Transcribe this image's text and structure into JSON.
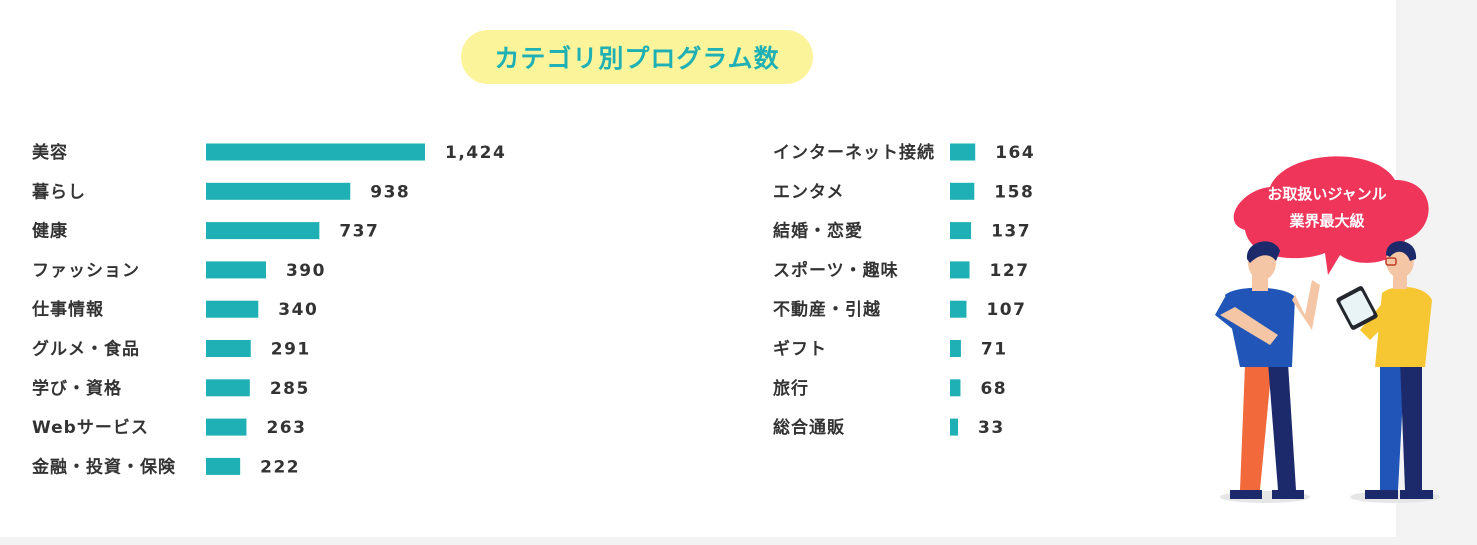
{
  "chart_data": {
    "type": "bar",
    "orientation": "horizontal",
    "title": "カテゴリ別プログラム数",
    "groups": [
      {
        "categories": [
          "美容",
          "暮らし",
          "健康",
          "ファッション",
          "仕事情報",
          "グルメ・食品",
          "学び・資格",
          "Webサービス",
          "金融・投資・保険"
        ],
        "values": [
          1424,
          938,
          737,
          390,
          340,
          291,
          285,
          263,
          222
        ],
        "value_labels": [
          "1,424",
          "938",
          "737",
          "390",
          "340",
          "291",
          "285",
          "263",
          "222"
        ]
      },
      {
        "categories": [
          "インターネット接続",
          "エンタメ",
          "結婚・恋愛",
          "スポーツ・趣味",
          "不動産・引越",
          "ギフト",
          "旅行",
          "総合通販"
        ],
        "values": [
          164,
          158,
          137,
          127,
          107,
          71,
          68,
          33
        ],
        "value_labels": [
          "164",
          "158",
          "137",
          "127",
          "107",
          "71",
          "68",
          "33"
        ]
      }
    ],
    "bar_color": "#1eb0b4",
    "grid": false
  },
  "bubble": {
    "line1": "お取扱いジャンル",
    "line2": "業界最大級",
    "color": "#f0355a"
  },
  "illustration": {
    "icon": "two-people-talking-with-tablet-icon"
  },
  "colors": {
    "title_bg": "#fcf49b",
    "title_text": "#1eb0b4",
    "accent": "#1eb0b4"
  }
}
